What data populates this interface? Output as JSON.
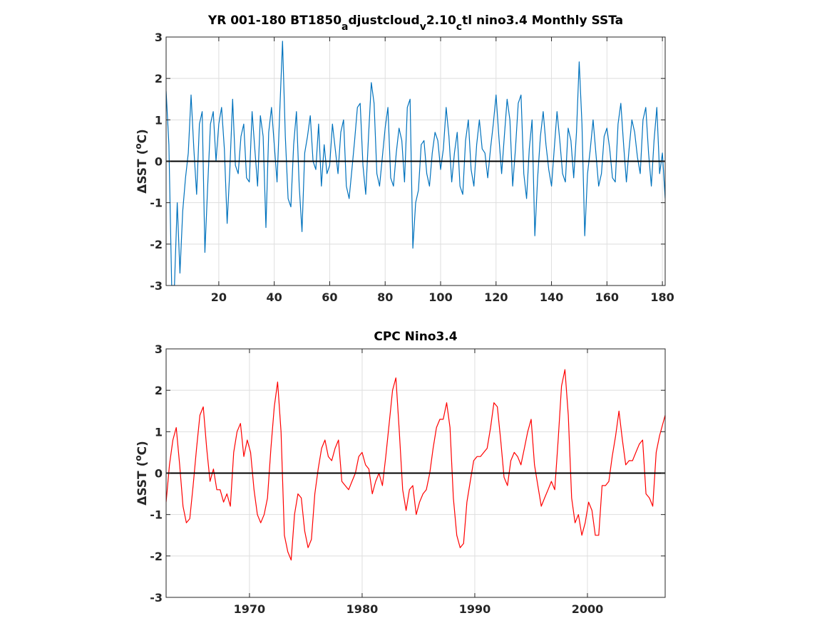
{
  "chart_data": [
    {
      "type": "line",
      "title": "YR 001-180 BT1850",
      "title_parts": [
        {
          "text": "YR 001-180 BT1850",
          "sub": false
        },
        {
          "text": "a",
          "sub": true
        },
        {
          "text": "djustcloud",
          "sub": false
        },
        {
          "text": "v",
          "sub": true
        },
        {
          "text": "2.10",
          "sub": false
        },
        {
          "text": "c",
          "sub": true
        },
        {
          "text": "tl nino3.4 Monthly SSTa",
          "sub": false
        }
      ],
      "ylabel_parts": [
        {
          "text": "ΔSST (",
          "sup": false
        },
        {
          "text": "o",
          "sup": true
        },
        {
          "text": "C)",
          "sup": false
        }
      ],
      "xlim": [
        1,
        181
      ],
      "ylim": [
        -3,
        3
      ],
      "xticks": [
        20,
        40,
        60,
        80,
        100,
        120,
        140,
        160,
        180
      ],
      "xtick_labels": [
        "20",
        "40",
        "60",
        "80",
        "100",
        "120",
        "140",
        "160",
        "180"
      ],
      "yticks": [
        -3,
        -2,
        -1,
        0,
        1,
        2,
        3
      ],
      "ytick_labels": [
        "-3",
        "-2",
        "-1",
        "0",
        "1",
        "2",
        "3"
      ],
      "grid": true,
      "zero_line": true,
      "line_color": "#0072BD",
      "series": [
        {
          "x": [
            1,
            2,
            3,
            4,
            5,
            6,
            7,
            8,
            9,
            10,
            11,
            12,
            13,
            14,
            15,
            16,
            17,
            18,
            19,
            20,
            21,
            22,
            23,
            24,
            25,
            26,
            27,
            28,
            29,
            30,
            31,
            32,
            33,
            34,
            35,
            36,
            37,
            38,
            39,
            40,
            41,
            42,
            43,
            44,
            45,
            46,
            47,
            48,
            49,
            50,
            51,
            52,
            53,
            54,
            55,
            56,
            57,
            58,
            59,
            60,
            61,
            62,
            63,
            64,
            65,
            66,
            67,
            68,
            69,
            70,
            71,
            72,
            73,
            74,
            75,
            76,
            77,
            78,
            79,
            80,
            81,
            82,
            83,
            84,
            85,
            86,
            87,
            88,
            89,
            90,
            91,
            92,
            93,
            94,
            95,
            96,
            97,
            98,
            99,
            100,
            101,
            102,
            103,
            104,
            105,
            106,
            107,
            108,
            109,
            110,
            111,
            112,
            113,
            114,
            115,
            116,
            117,
            118,
            119,
            120,
            121,
            122,
            123,
            124,
            125,
            126,
            127,
            128,
            129,
            130,
            131,
            132,
            133,
            134,
            135,
            136,
            137,
            138,
            139,
            140,
            141,
            142,
            143,
            144,
            145,
            146,
            147,
            148,
            149,
            150,
            151,
            152,
            153,
            154,
            155,
            156,
            157,
            158,
            159,
            160,
            161,
            162,
            163,
            164,
            165,
            166,
            167,
            168,
            169,
            170,
            171,
            172,
            173,
            174,
            175,
            176,
            177,
            178,
            179,
            180,
            181
          ],
          "values": [
            1.7,
            0.4,
            -3.0,
            -3.0,
            -1.0,
            -2.7,
            -1.2,
            -0.4,
            0.2,
            1.6,
            0.3,
            -0.8,
            0.9,
            1.2,
            -2.2,
            -0.6,
            0.9,
            1.2,
            0.0,
            0.9,
            1.3,
            0.3,
            -1.5,
            -0.2,
            1.5,
            -0.1,
            -0.3,
            0.6,
            0.9,
            -0.4,
            -0.5,
            1.2,
            0.3,
            -0.6,
            1.1,
            0.6,
            -1.6,
            0.7,
            1.3,
            0.4,
            -0.5,
            1.2,
            2.9,
            0.6,
            -0.9,
            -1.1,
            0.4,
            1.2,
            -0.6,
            -1.7,
            0.2,
            0.6,
            1.1,
            0.0,
            -0.2,
            0.9,
            -0.6,
            0.4,
            -0.3,
            -0.1,
            0.9,
            0.3,
            -0.3,
            0.7,
            1.0,
            -0.6,
            -0.9,
            -0.2,
            0.5,
            1.3,
            1.4,
            -0.1,
            -0.8,
            0.6,
            1.9,
            1.4,
            -0.3,
            -0.6,
            0.1,
            0.8,
            1.3,
            -0.4,
            -0.6,
            0.2,
            0.8,
            0.5,
            -0.5,
            1.3,
            1.5,
            -2.1,
            -1.0,
            -0.7,
            0.4,
            0.5,
            -0.3,
            -0.6,
            0.2,
            0.7,
            0.5,
            -0.2,
            0.3,
            1.3,
            0.6,
            -0.5,
            0.2,
            0.7,
            -0.6,
            -0.8,
            0.5,
            1.0,
            -0.2,
            -0.6,
            0.4,
            1.0,
            0.3,
            0.2,
            -0.4,
            0.3,
            0.9,
            1.6,
            0.6,
            -0.3,
            0.6,
            1.5,
            1.0,
            -0.6,
            0.3,
            1.4,
            1.6,
            -0.3,
            -0.9,
            0.3,
            1.0,
            -1.8,
            -0.4,
            0.6,
            1.2,
            0.4,
            -0.2,
            -0.6,
            0.3,
            1.2,
            0.5,
            -0.3,
            -0.5,
            0.8,
            0.5,
            -0.4,
            0.7,
            2.4,
            0.9,
            -1.8,
            -0.3,
            0.3,
            1.0,
            0.2,
            -0.6,
            -0.3,
            0.6,
            0.8,
            0.3,
            -0.4,
            -0.5,
            0.9,
            1.4,
            0.4,
            -0.5,
            0.3,
            1.0,
            0.7,
            0.1,
            -0.3,
            1.0,
            1.3,
            0.2,
            -0.6,
            0.5,
            1.3,
            -0.3,
            0.2,
            -0.9
          ]
        }
      ]
    },
    {
      "type": "line",
      "title": "CPC Nino3.4",
      "ylabel_parts": [
        {
          "text": "ΔSST (",
          "sup": false
        },
        {
          "text": "o",
          "sup": true
        },
        {
          "text": "C)",
          "sup": false
        }
      ],
      "xlim": [
        1962.6,
        2006.9
      ],
      "ylim": [
        -3,
        3
      ],
      "xticks": [
        1970,
        1980,
        1990,
        2000
      ],
      "xtick_labels": [
        "1970",
        "1980",
        "1990",
        "2000"
      ],
      "yticks": [
        -3,
        -2,
        -1,
        0,
        1,
        2,
        3
      ],
      "ytick_labels": [
        "-3",
        "-2",
        "-1",
        "0",
        "1",
        "2",
        "3"
      ],
      "grid": true,
      "zero_line": true,
      "line_color": "#FF0000",
      "series": [
        {
          "x": [
            1962.6,
            1962.9,
            1963.2,
            1963.5,
            1963.8,
            1964.1,
            1964.4,
            1964.7,
            1965.0,
            1965.3,
            1965.6,
            1965.9,
            1966.2,
            1966.5,
            1966.8,
            1967.1,
            1967.4,
            1967.7,
            1968.0,
            1968.3,
            1968.6,
            1968.9,
            1969.2,
            1969.5,
            1969.8,
            1970.1,
            1970.4,
            1970.7,
            1971.0,
            1971.3,
            1971.6,
            1971.9,
            1972.2,
            1972.5,
            1972.8,
            1973.1,
            1973.4,
            1973.7,
            1974.0,
            1974.3,
            1974.6,
            1974.9,
            1975.2,
            1975.5,
            1975.8,
            1976.1,
            1976.4,
            1976.7,
            1977.0,
            1977.3,
            1977.6,
            1977.9,
            1978.2,
            1978.5,
            1978.8,
            1979.1,
            1979.4,
            1979.7,
            1980.0,
            1980.3,
            1980.6,
            1980.9,
            1981.2,
            1981.5,
            1981.8,
            1982.1,
            1982.4,
            1982.7,
            1983.0,
            1983.3,
            1983.6,
            1983.9,
            1984.2,
            1984.5,
            1984.8,
            1985.1,
            1985.4,
            1985.7,
            1986.0,
            1986.3,
            1986.6,
            1986.9,
            1987.2,
            1987.5,
            1987.8,
            1988.1,
            1988.4,
            1988.7,
            1989.0,
            1989.3,
            1989.6,
            1989.9,
            1990.2,
            1990.5,
            1990.8,
            1991.1,
            1991.4,
            1991.7,
            1992.0,
            1992.3,
            1992.6,
            1992.9,
            1993.2,
            1993.5,
            1993.8,
            1994.1,
            1994.4,
            1994.7,
            1995.0,
            1995.3,
            1995.6,
            1995.9,
            1996.2,
            1996.5,
            1996.8,
            1997.1,
            1997.4,
            1997.7,
            1998.0,
            1998.3,
            1998.6,
            1998.9,
            1999.2,
            1999.5,
            1999.8,
            2000.1,
            2000.4,
            2000.7,
            2001.0,
            2001.3,
            2001.6,
            2001.9,
            2002.2,
            2002.5,
            2002.8,
            2003.1,
            2003.4,
            2003.7,
            2004.0,
            2004.3,
            2004.6,
            2004.9,
            2005.2,
            2005.5,
            2005.8,
            2006.1,
            2006.4,
            2006.9
          ],
          "values": [
            -0.7,
            0.2,
            0.8,
            1.1,
            0.2,
            -0.8,
            -1.2,
            -1.1,
            -0.3,
            0.6,
            1.4,
            1.6,
            0.6,
            -0.2,
            0.1,
            -0.4,
            -0.4,
            -0.7,
            -0.5,
            -0.8,
            0.5,
            1.0,
            1.2,
            0.4,
            0.8,
            0.5,
            -0.4,
            -1.0,
            -1.2,
            -1.0,
            -0.6,
            0.6,
            1.6,
            2.2,
            1.0,
            -1.5,
            -1.9,
            -2.1,
            -1.0,
            -0.5,
            -0.6,
            -1.4,
            -1.8,
            -1.6,
            -0.5,
            0.1,
            0.6,
            0.8,
            0.4,
            0.3,
            0.6,
            0.8,
            -0.2,
            -0.3,
            -0.4,
            -0.2,
            0.0,
            0.4,
            0.5,
            0.2,
            0.1,
            -0.5,
            -0.2,
            0.0,
            -0.3,
            0.4,
            1.2,
            2.0,
            2.3,
            1.0,
            -0.4,
            -0.9,
            -0.4,
            -0.3,
            -1.0,
            -0.7,
            -0.5,
            -0.4,
            0.0,
            0.6,
            1.1,
            1.3,
            1.3,
            1.7,
            1.1,
            -0.6,
            -1.5,
            -1.8,
            -1.7,
            -0.7,
            -0.2,
            0.3,
            0.4,
            0.4,
            0.5,
            0.6,
            1.1,
            1.7,
            1.6,
            0.8,
            -0.1,
            -0.3,
            0.3,
            0.5,
            0.4,
            0.2,
            0.6,
            1.0,
            1.3,
            0.2,
            -0.3,
            -0.8,
            -0.6,
            -0.4,
            -0.2,
            -0.4,
            0.8,
            2.1,
            2.5,
            1.4,
            -0.6,
            -1.2,
            -1.0,
            -1.5,
            -1.2,
            -0.7,
            -0.9,
            -1.5,
            -1.5,
            -0.3,
            -0.3,
            -0.2,
            0.4,
            0.9,
            1.5,
            0.8,
            0.2,
            0.3,
            0.3,
            0.5,
            0.7,
            0.8,
            -0.5,
            -0.6,
            -0.8,
            0.5,
            0.9,
            1.4
          ]
        }
      ]
    }
  ]
}
